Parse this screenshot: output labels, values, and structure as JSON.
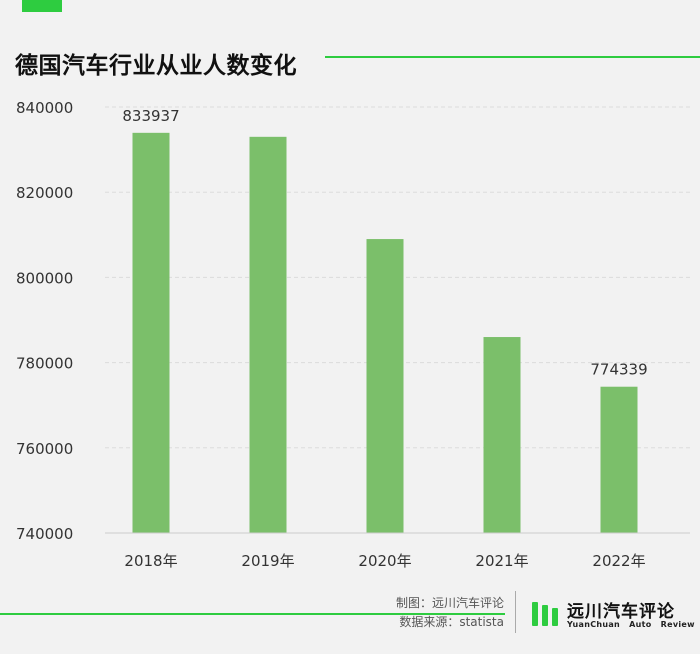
{
  "page": {
    "title": "德国汽车行业从业人数变化",
    "credit_line1": "制图：远川汽车评论",
    "credit_line2": "数据来源：statista",
    "logo_cn": "远川汽车评论",
    "logo_en": "YuanChuan Auto Review"
  },
  "colors": {
    "accent": "#2ecc40",
    "bar": "#7bbf6a",
    "background": "#f2f2f2",
    "grid": "#dcdcdc"
  },
  "chart_data": {
    "type": "bar",
    "title": "德国汽车行业从业人数变化",
    "categories": [
      "2018年",
      "2019年",
      "2020年",
      "2021年",
      "2022年"
    ],
    "values": [
      833937,
      833000,
      809000,
      786000,
      774339
    ],
    "data_labels": [
      "833937",
      "",
      "",
      "",
      "774339"
    ],
    "y_ticks": [
      740000,
      760000,
      780000,
      800000,
      820000,
      840000
    ],
    "ylim": [
      740000,
      840000
    ],
    "grid": true,
    "xlabel": "",
    "ylabel": ""
  }
}
